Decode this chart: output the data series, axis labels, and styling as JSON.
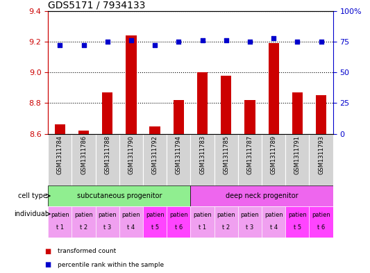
{
  "title": "GDS5171 / 7934133",
  "samples": [
    "GSM1311784",
    "GSM1311786",
    "GSM1311788",
    "GSM1311790",
    "GSM1311792",
    "GSM1311794",
    "GSM1311783",
    "GSM1311785",
    "GSM1311787",
    "GSM1311789",
    "GSM1311791",
    "GSM1311793"
  ],
  "bar_values": [
    8.66,
    8.62,
    8.87,
    9.24,
    8.65,
    8.82,
    9.0,
    8.98,
    8.82,
    9.19,
    8.87,
    8.85
  ],
  "scatter_values": [
    72,
    72,
    75,
    76,
    72,
    75,
    76,
    76,
    75,
    78,
    75,
    75
  ],
  "ylim_left": [
    8.6,
    9.4
  ],
  "ylim_right": [
    0,
    100
  ],
  "yticks_left": [
    8.6,
    8.8,
    9.0,
    9.2,
    9.4
  ],
  "yticks_right": [
    0,
    25,
    50,
    75,
    100
  ],
  "ytick_labels_right": [
    "0",
    "25",
    "50",
    "75",
    "100%"
  ],
  "bar_color": "#cc0000",
  "scatter_color": "#0000cc",
  "bar_baseline": 8.6,
  "cell_type_groups": [
    {
      "label": "subcutaneous progenitor",
      "start": 0,
      "end": 6,
      "color": "#90ee90"
    },
    {
      "label": "deep neck progenitor",
      "start": 6,
      "end": 12,
      "color": "#ee66ee"
    }
  ],
  "individual_top_colors": [
    "#f0a0f0",
    "#f0a0f0",
    "#f0a0f0",
    "#f0a0f0",
    "#ff44ff",
    "#ff44ff",
    "#f0a0f0",
    "#f0a0f0",
    "#f0a0f0",
    "#f0a0f0",
    "#ff44ff",
    "#ff44ff"
  ],
  "individual_labels_top": [
    "patien",
    "patien",
    "patien",
    "patien",
    "patien",
    "patien",
    "patien",
    "patien",
    "patien",
    "patien",
    "patien",
    "patien"
  ],
  "individual_labels_bot": [
    "t 1",
    "t 2",
    "t 3",
    "t 4",
    "t 5",
    "t 6",
    "t 1",
    "t 2",
    "t 3",
    "t 4",
    "t 5",
    "t 6"
  ],
  "legend_items": [
    {
      "color": "#cc0000",
      "label": "transformed count"
    },
    {
      "color": "#0000cc",
      "label": "percentile rank within the sample"
    }
  ],
  "cell_type_label": "cell type",
  "individual_label": "individual",
  "sample_bg_color": "#d3d3d3",
  "left_axis_color": "#cc0000",
  "right_axis_color": "#0000cc",
  "title_fontsize": 10,
  "tick_fontsize": 8,
  "sample_fontsize": 6,
  "annot_fontsize": 7,
  "indiv_fontsize": 6
}
